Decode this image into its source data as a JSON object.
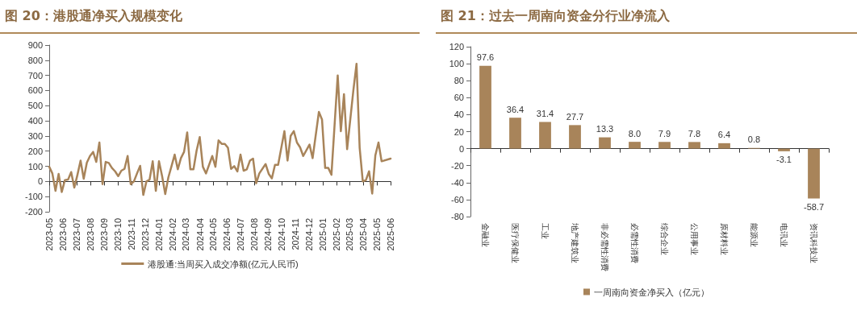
{
  "chart_data": [
    {
      "type": "line",
      "title": "图 20：港股通净买入规模变化",
      "legend": "bottom",
      "marker": "none",
      "line_style": "solid",
      "x": [
        "2023-05-01",
        "2023-05-08",
        "2023-05-15",
        "2023-05-22",
        "2023-05-29",
        "2023-06-05",
        "2023-06-12",
        "2023-06-19",
        "2023-06-26",
        "2023-07-03",
        "2023-07-10",
        "2023-07-17",
        "2023-07-24",
        "2023-07-31",
        "2023-08-07",
        "2023-08-14",
        "2023-08-21",
        "2023-08-28",
        "2023-09-04",
        "2023-09-11",
        "2023-09-18",
        "2023-09-25",
        "2023-10-02",
        "2023-10-09",
        "2023-10-16",
        "2023-10-23",
        "2023-10-30",
        "2023-11-06",
        "2023-11-13",
        "2023-11-20",
        "2023-11-27",
        "2023-12-04",
        "2023-12-11",
        "2023-12-18",
        "2023-12-25",
        "2024-01-01",
        "2024-01-08",
        "2024-01-15",
        "2024-01-22",
        "2024-01-29",
        "2024-02-05",
        "2024-02-12",
        "2024-02-19",
        "2024-02-26",
        "2024-03-04",
        "2024-03-11",
        "2024-03-18",
        "2024-03-25",
        "2024-04-01",
        "2024-04-08",
        "2024-04-15",
        "2024-04-29",
        "2024-05-06",
        "2024-05-13",
        "2024-05-20",
        "2024-05-27",
        "2024-06-03",
        "2024-06-10",
        "2024-06-17",
        "2024-06-24",
        "2024-07-01",
        "2024-07-08",
        "2024-07-15",
        "2024-07-22",
        "2024-07-29",
        "2024-08-05",
        "2024-08-12",
        "2024-08-26",
        "2024-09-02",
        "2024-09-09",
        "2024-09-16",
        "2024-09-23",
        "2024-10-07",
        "2024-10-14",
        "2024-10-21",
        "2024-10-28",
        "2024-11-04",
        "2024-11-11",
        "2024-11-18",
        "2024-12-02",
        "2024-12-09",
        "2024-12-23",
        "2024-12-30",
        "2025-01-06",
        "2025-01-13",
        "2025-01-20",
        "2025-02-03",
        "2025-02-10",
        "2025-02-17",
        "2025-02-24",
        "2025-03-10",
        "2025-03-17",
        "2025-03-24",
        "2025-03-31",
        "2025-04-07",
        "2025-04-14",
        "2025-04-21",
        "2025-04-28",
        "2025-05-05",
        "2025-05-12",
        "2025-06-01"
      ],
      "series": [
        {
          "name": "港股通:当周买入成交净额(亿元人民币)",
          "color": "#a8845a",
          "values": [
            97,
            53,
            -62,
            50,
            -70,
            9,
            12,
            62,
            -41,
            44,
            137,
            18,
            124,
            168,
            195,
            129,
            257,
            -18,
            129,
            122,
            89,
            67,
            35,
            71,
            83,
            168,
            -18,
            0,
            53,
            103,
            -89,
            0,
            12,
            133,
            -62,
            133,
            35,
            -83,
            27,
            101,
            177,
            80,
            154,
            195,
            324,
            80,
            80,
            204,
            293,
            97,
            53,
            168,
            97,
            271,
            248,
            248,
            222,
            83,
            101,
            66,
            177,
            71,
            80,
            137,
            151,
            -12,
            53,
            115,
            50,
            21,
            110,
            110,
            332,
            138,
            301,
            332,
            257,
            225,
            168,
            243,
            154,
            459,
            408,
            89,
            89,
            44,
            700,
            332,
            576,
            213,
            603,
            777,
            222,
            0,
            9,
            67,
            -80,
            172,
            257,
            133,
            151
          ]
        }
      ],
      "xlim": [
        "2023-05-01",
        "2025-06-01"
      ],
      "xticks": [
        "2023-05",
        "2023-06",
        "2023-07",
        "2023-08",
        "2023-09",
        "2023-10",
        "2023-11",
        "2023-12",
        "2024-01",
        "2024-02",
        "2024-03",
        "2024-04",
        "2024-05",
        "2024-06",
        "2024-07",
        "2024-08",
        "2024-09",
        "2024-10",
        "2024-11",
        "2024-12",
        "2025-01",
        "2025-02",
        "2025-03",
        "2025-04",
        "2025-05",
        "2025-06"
      ],
      "ylim": [
        -200,
        900
      ],
      "yticks": [
        -200,
        -100,
        0,
        100,
        200,
        300,
        400,
        500,
        600,
        700,
        800,
        900
      ]
    },
    {
      "type": "bar",
      "title": "图 21：过去一周南向资金分行业净流入",
      "legend": "bottom",
      "categories": [
        "金融业",
        "医疗保健业",
        "工业",
        "地产建筑业",
        "非必需性消费",
        "必需性消费",
        "综合企业",
        "公用事业",
        "原材料业",
        "能源业",
        "电讯业",
        "资讯科技业"
      ],
      "series": [
        {
          "name": "一周南向资金净买入（亿元）",
          "color": "#a8845a",
          "values": [
            97.6,
            36.4,
            31.4,
            27.7,
            13.3,
            8.0,
            7.9,
            7.8,
            6.4,
            0.8,
            -3.1,
            -58.7
          ],
          "value_labels": [
            "97.6",
            "36.4",
            "31.4",
            "27.7",
            "13.3",
            "8.0",
            "7.9",
            "7.8",
            "6.4",
            "0.8",
            "-3.1",
            "-58.7"
          ]
        }
      ],
      "ylim": [
        -80,
        120
      ],
      "yticks": [
        -80,
        -60,
        -40,
        -20,
        0,
        20,
        40,
        60,
        80,
        100,
        120
      ]
    }
  ]
}
